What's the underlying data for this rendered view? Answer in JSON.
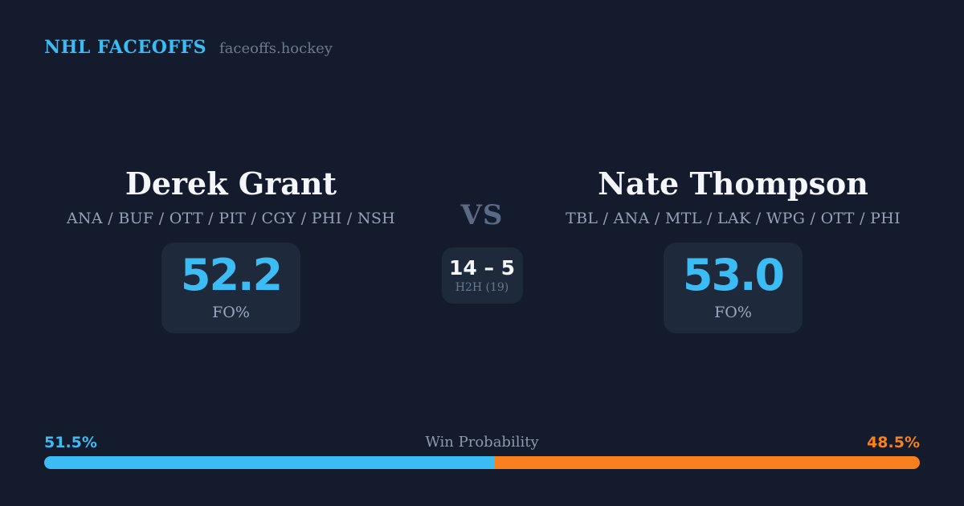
{
  "header": {
    "brand": "NHL FACEOFFS",
    "site": "faceoffs.hockey"
  },
  "matchup": {
    "vs_label": "VS",
    "h2h": {
      "record": "14 – 5",
      "label": "H2H (19)"
    },
    "left": {
      "name": "Derek Grant",
      "teams": "ANA / BUF / OTT / PIT / CGY / PHI / NSH",
      "fo_value": "52.2",
      "fo_label": "FO%"
    },
    "right": {
      "name": "Nate Thompson",
      "teams": "TBL / ANA / MTL / LAK / WPG / OTT / PHI",
      "fo_value": "53.0",
      "fo_label": "FO%"
    }
  },
  "win_probability": {
    "title": "Win Probability",
    "left_pct": "51.5%",
    "right_pct": "48.5%",
    "left_value": 51.5,
    "right_value": 48.5
  },
  "colors": {
    "background": "#131b2c",
    "card": "#1e293b",
    "accent_blue": "#3cbcf5",
    "accent_orange": "#f8801e",
    "text_white": "#f3f6fa",
    "text_muted": "#94a3b8"
  },
  "chart_data": {
    "type": "bar",
    "title": "Win Probability",
    "categories": [
      "Derek Grant",
      "Nate Thompson"
    ],
    "values": [
      51.5,
      48.5
    ],
    "unit": "%",
    "colors": [
      "#3cbcf5",
      "#f8801e"
    ],
    "layout": "single horizontal stacked bar, blue segment left / orange segment right, value labels at bar ends",
    "supporting_stats": {
      "faceoff_pct": {
        "Derek Grant": 52.2,
        "Nate Thompson": 53.0
      },
      "head_to_head": {
        "record": "14 – 5",
        "games": 19
      }
    }
  }
}
